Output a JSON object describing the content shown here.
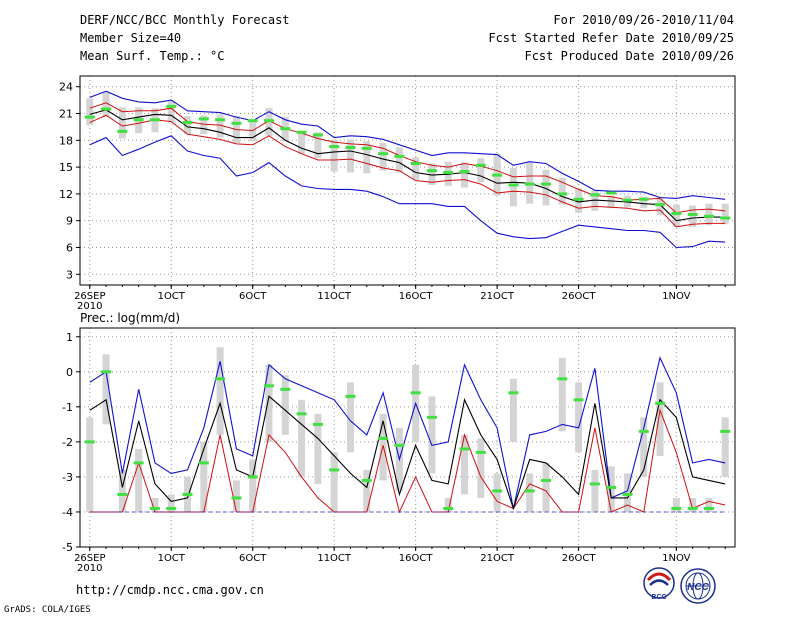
{
  "header": {
    "title": "DERF/NCC/BCC Monthly Forecast",
    "member_size": "Member Size=40",
    "variable": "Mean Surf. Temp.: °C",
    "period": "For 2010/09/26-2010/11/04",
    "fcst_started": "Fcst Started Refer Date 2010/09/25",
    "fcst_produced": "Fcst Produced Date 2010/09/26"
  },
  "footer": {
    "url": "http://cmdp.ncc.cma.gov.cn",
    "grads": "GrADS: COLA/IGES",
    "logo_bcc_text": "BCC",
    "logo_ncc_text": "NCC"
  },
  "colors": {
    "envelope": "#1010d0",
    "ensemble_mean": "#000000",
    "percentile_lines": "#d01010",
    "median_marker": "#40e040",
    "box": "#d4d4d4",
    "grid": "#999999",
    "zero_line": "#2020d0"
  },
  "chart_data": [
    {
      "type": "line",
      "title": "Mean Surf. Temp.: °C",
      "x_ticks": [
        {
          "day": 0,
          "label": "26SEP",
          "sublabel": "2010"
        },
        {
          "day": 5,
          "label": "1OCT"
        },
        {
          "day": 10,
          "label": "6OCT"
        },
        {
          "day": 15,
          "label": "11OCT"
        },
        {
          "day": 20,
          "label": "16OCT"
        },
        {
          "day": 25,
          "label": "21OCT"
        },
        {
          "day": 30,
          "label": "26OCT"
        },
        {
          "day": 36,
          "label": "1NOV"
        }
      ],
      "y_ticks": [
        3,
        6,
        9,
        12,
        15,
        18,
        21,
        24
      ],
      "ylim": [
        1.8,
        25.2
      ],
      "xlim": [
        -0.6,
        39.6
      ],
      "series": [
        {
          "name": "max",
          "values": [
            22.8,
            23.5,
            22.7,
            22.3,
            22.2,
            22.5,
            21.3,
            21.2,
            21.1,
            20.6,
            20.2,
            21.2,
            20.3,
            19.8,
            19.6,
            18.3,
            18.5,
            18.4,
            18.1,
            17.5,
            16.9,
            16.3,
            16.6,
            16.6,
            16.5,
            16.4,
            15.2,
            15.6,
            15.4,
            14.3,
            13.4,
            12.4,
            12.3,
            12.3,
            12.2,
            11.6,
            11.5,
            11.8,
            11.6,
            11.4
          ]
        },
        {
          "name": "p90",
          "values": [
            21.6,
            22.2,
            21.2,
            21.3,
            21.3,
            21.6,
            20.1,
            19.8,
            19.7,
            19.2,
            19.1,
            20.2,
            19.3,
            18.8,
            18.2,
            17.8,
            17.6,
            17.5,
            17.1,
            16.3,
            15.6,
            15.2,
            15.0,
            15.4,
            15.1,
            14.6,
            13.9,
            14.0,
            14.0,
            13.3,
            12.5,
            11.8,
            11.7,
            11.3,
            11.4,
            11.5,
            9.9,
            10.2,
            10.3,
            10.1
          ]
        },
        {
          "name": "mean",
          "values": [
            20.9,
            21.4,
            20.3,
            20.6,
            20.9,
            20.8,
            19.5,
            19.3,
            18.9,
            18.3,
            18.3,
            19.4,
            18.0,
            17.1,
            16.5,
            16.7,
            16.8,
            16.4,
            15.9,
            15.5,
            14.4,
            14.1,
            14.2,
            14.4,
            14.0,
            13.2,
            13.3,
            13.2,
            12.6,
            11.7,
            11.1,
            11.3,
            11.2,
            11.1,
            10.9,
            10.8,
            9.0,
            9.3,
            9.4,
            9.4
          ]
        },
        {
          "name": "p10",
          "values": [
            20.0,
            20.8,
            19.6,
            19.9,
            20.3,
            20.1,
            18.7,
            18.4,
            18.1,
            17.6,
            17.5,
            18.5,
            17.3,
            16.5,
            15.8,
            15.8,
            15.9,
            15.4,
            14.9,
            14.6,
            13.5,
            13.3,
            13.5,
            13.6,
            13.1,
            12.1,
            12.3,
            12.2,
            11.9,
            11.1,
            10.4,
            10.6,
            10.5,
            10.4,
            10.1,
            10.2,
            8.3,
            8.6,
            8.7,
            8.7
          ]
        },
        {
          "name": "min",
          "values": [
            17.5,
            18.3,
            16.3,
            17.0,
            17.8,
            18.5,
            16.8,
            16.3,
            16.0,
            14.0,
            14.4,
            15.5,
            14.0,
            12.9,
            12.6,
            12.5,
            12.5,
            12.3,
            11.7,
            10.9,
            10.9,
            10.9,
            10.6,
            10.6,
            9.0,
            7.6,
            7.2,
            7.0,
            7.1,
            7.8,
            8.5,
            8.3,
            8.1,
            7.9,
            7.9,
            7.7,
            6.0,
            6.1,
            6.7,
            6.6
          ]
        },
        {
          "name": "median",
          "values": [
            20.6,
            21.5,
            19.0,
            20.3,
            20.3,
            21.8,
            20.0,
            20.4,
            20.3,
            19.9,
            20.2,
            20.2,
            19.3,
            18.9,
            18.6,
            17.3,
            17.2,
            17.1,
            16.5,
            16.2,
            15.4,
            14.6,
            14.4,
            14.5,
            15.2,
            14.1,
            13.0,
            13.1,
            13.1,
            12.0,
            11.4,
            11.9,
            12.1,
            11.3,
            11.4,
            10.8,
            9.8,
            9.7,
            9.5,
            9.3
          ]
        },
        {
          "name": "box_high",
          "values": [
            22.7,
            23.4,
            21.7,
            21.7,
            21.6,
            22.4,
            20.7,
            20.8,
            20.9,
            20.7,
            20.3,
            21.6,
            20.6,
            19.1,
            18.9,
            18.1,
            18.1,
            17.9,
            17.7,
            17.2,
            16.1,
            15.4,
            15.6,
            15.5,
            16.0,
            16.5,
            14.9,
            15.5,
            14.7,
            13.8,
            12.6,
            12.4,
            11.8,
            11.8,
            11.7,
            11.6,
            10.8,
            10.7,
            10.9,
            10.9
          ]
        },
        {
          "name": "box_low",
          "values": [
            19.7,
            20.6,
            18.2,
            18.8,
            18.9,
            20.0,
            18.7,
            18.7,
            18.3,
            17.7,
            17.9,
            18.5,
            17.9,
            16.5,
            16.0,
            14.5,
            14.4,
            14.3,
            14.6,
            14.4,
            13.6,
            13.0,
            12.9,
            12.7,
            13.3,
            11.8,
            10.6,
            10.9,
            10.7,
            10.8,
            9.9,
            10.1,
            10.4,
            10.5,
            10.4,
            9.6,
            8.3,
            8.3,
            8.5,
            8.6
          ]
        }
      ]
    },
    {
      "type": "line",
      "title": "Prec.: log(mm/d)",
      "x_ticks": [
        {
          "day": 0,
          "label": "26SEP",
          "sublabel": "2010"
        },
        {
          "day": 5,
          "label": "1OCT"
        },
        {
          "day": 10,
          "label": "6OCT"
        },
        {
          "day": 15,
          "label": "11OCT"
        },
        {
          "day": 20,
          "label": "16OCT"
        },
        {
          "day": 25,
          "label": "21OCT"
        },
        {
          "day": 30,
          "label": "26OCT"
        },
        {
          "day": 36,
          "label": "1NOV"
        }
      ],
      "y_ticks": [
        -5,
        -4,
        -3,
        -2,
        -1,
        0,
        1
      ],
      "ylim": [
        -5,
        1.25
      ],
      "xlim": [
        -0.6,
        39.6
      ],
      "series": [
        {
          "name": "max",
          "values": [
            -0.3,
            0.0,
            -2.9,
            -0.5,
            -2.6,
            -2.9,
            -2.8,
            -1.6,
            0.3,
            -2.2,
            -2.4,
            0.2,
            -0.2,
            -0.4,
            -0.6,
            -0.8,
            -1.4,
            -1.8,
            -0.6,
            -2.5,
            -0.9,
            -2.1,
            -2.0,
            0.2,
            -0.8,
            -1.6,
            -3.9,
            -1.8,
            -1.7,
            -1.5,
            -1.6,
            0.1,
            -3.6,
            -3.4,
            -1.6,
            0.4,
            -0.6,
            -2.6,
            -2.5,
            -2.6
          ]
        },
        {
          "name": "mean",
          "values": [
            -1.1,
            -0.8,
            -3.3,
            -1.4,
            -3.2,
            -3.7,
            -3.6,
            -2.2,
            -0.9,
            -2.8,
            -3.0,
            -0.7,
            -1.1,
            -1.5,
            -1.9,
            -2.4,
            -2.9,
            -3.3,
            -1.4,
            -3.5,
            -2.1,
            -3.1,
            -3.2,
            -0.8,
            -1.8,
            -2.5,
            -3.9,
            -2.5,
            -2.6,
            -3.0,
            -3.5,
            -0.9,
            -3.6,
            -3.6,
            -2.8,
            -0.8,
            -1.3,
            -3.0,
            -3.1,
            -3.2
          ]
        },
        {
          "name": "p90",
          "values": [
            -4.0,
            -4.0,
            -4.0,
            -2.6,
            -4.0,
            -4.0,
            -4.0,
            -4.0,
            -1.8,
            -4.0,
            -4.0,
            -1.8,
            -2.3,
            -3.0,
            -3.6,
            -4.0,
            -4.0,
            -4.0,
            -2.1,
            -4.0,
            -3.0,
            -4.0,
            -4.0,
            -1.8,
            -3.0,
            -3.7,
            -3.9,
            -3.2,
            -3.4,
            -4.0,
            -4.0,
            -1.6,
            -4.0,
            -3.8,
            -4.0,
            -1.1,
            -2.3,
            -3.9,
            -3.7,
            -3.8
          ]
        },
        {
          "name": "median",
          "values": [
            -2.0,
            0.0,
            -3.5,
            -2.6,
            -3.9,
            -3.9,
            -3.5,
            -2.6,
            -0.2,
            -3.6,
            -3.0,
            -0.4,
            -0.5,
            -1.2,
            -1.5,
            -2.8,
            -0.7,
            -3.1,
            -1.9,
            -2.1,
            -0.6,
            -1.3,
            -3.9,
            -2.2,
            -2.3,
            -3.4,
            -0.6,
            -3.4,
            -3.1,
            -0.2,
            -0.8,
            -3.2,
            -3.3,
            -3.5,
            -1.7,
            -0.9,
            -3.9,
            -3.9,
            -3.9,
            -1.7
          ]
        },
        {
          "name": "box_high",
          "values": [
            -1.3,
            0.5,
            -2.8,
            -2.2,
            -3.6,
            -3.5,
            -3.0,
            -2.0,
            0.7,
            -3.1,
            -2.5,
            0.2,
            -0.1,
            -0.8,
            -1.2,
            -2.3,
            -0.3,
            -2.8,
            -1.2,
            -1.6,
            0.2,
            -0.7,
            -3.6,
            -1.8,
            -1.9,
            -2.9,
            -0.2,
            -2.9,
            -2.6,
            0.4,
            -0.3,
            -2.8,
            -2.7,
            -2.9,
            -1.3,
            -0.3,
            -3.6,
            -3.6,
            -3.6,
            -1.3
          ]
        },
        {
          "name": "box_low",
          "values": [
            -4.0,
            -1.5,
            -4.0,
            -4.0,
            -4.0,
            -4.0,
            -4.0,
            -4.0,
            -1.8,
            -4.0,
            -4.0,
            -2.0,
            -1.8,
            -3.0,
            -3.2,
            -4.0,
            -2.3,
            -4.0,
            -3.1,
            -3.4,
            -2.0,
            -2.9,
            -4.0,
            -3.5,
            -3.6,
            -4.0,
            -2.0,
            -4.0,
            -4.0,
            -1.7,
            -2.3,
            -4.0,
            -4.0,
            -4.0,
            -3.0,
            -2.4,
            -4.0,
            -4.0,
            -4.0,
            -3.0
          ]
        }
      ]
    }
  ]
}
